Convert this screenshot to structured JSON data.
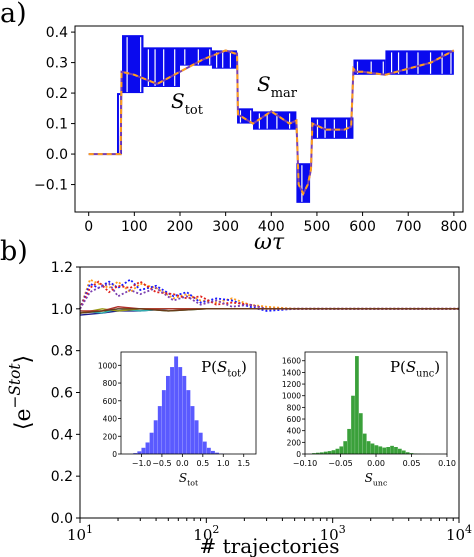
{
  "panels": {
    "a": {
      "label": "a)"
    },
    "b": {
      "label": "b)"
    }
  },
  "chart_data": [
    {
      "type": "line",
      "panel": "a",
      "xlabel": "ωτ",
      "xlim": [
        -30,
        820
      ],
      "ylim": [
        -0.19,
        0.42
      ],
      "xticks": [
        0,
        100,
        200,
        300,
        400,
        500,
        600,
        700,
        800
      ],
      "yticks": [
        -0.1,
        0.0,
        0.1,
        0.2,
        0.3,
        0.4
      ],
      "ytick_labels": [
        "−0.1",
        "0.0",
        "0.1",
        "0.2",
        "0.3",
        "0.4"
      ],
      "annotations": [
        {
          "text": "S_tot",
          "color": "#1a1aff"
        },
        {
          "text": "S_mar",
          "color": "#ff9f1c"
        }
      ],
      "colors": {
        "stot": "#0a0aee",
        "smar_dash_a": "#ff9f1c",
        "smar_dash_b": "#7b3fb0"
      },
      "stot_band": [
        {
          "x0": 0,
          "x1": 60,
          "lo": 0.0,
          "hi": 0.0
        },
        {
          "x0": 62,
          "x1": 73,
          "lo": 0.0,
          "hi": 0.2
        },
        {
          "x0": 73,
          "x1": 120,
          "lo": 0.2,
          "hi": 0.39
        },
        {
          "x0": 120,
          "x1": 200,
          "lo": 0.22,
          "hi": 0.35
        },
        {
          "x0": 200,
          "x1": 270,
          "lo": 0.29,
          "hi": 0.35
        },
        {
          "x0": 270,
          "x1": 325,
          "lo": 0.28,
          "hi": 0.34
        },
        {
          "x0": 325,
          "x1": 360,
          "lo": 0.1,
          "hi": 0.15
        },
        {
          "x0": 360,
          "x1": 455,
          "lo": 0.08,
          "hi": 0.14
        },
        {
          "x0": 455,
          "x1": 485,
          "lo": -0.16,
          "hi": -0.03
        },
        {
          "x0": 487,
          "x1": 580,
          "lo": 0.05,
          "hi": 0.12
        },
        {
          "x0": 580,
          "x1": 650,
          "lo": 0.26,
          "hi": 0.31
        },
        {
          "x0": 650,
          "x1": 800,
          "lo": 0.26,
          "hi": 0.34
        }
      ],
      "smar_line": {
        "x": [
          0,
          60,
          64,
          70,
          72,
          100,
          150,
          200,
          250,
          300,
          320,
          325,
          327,
          360,
          400,
          440,
          455,
          460,
          470,
          480,
          487,
          490,
          520,
          560,
          575,
          580,
          585,
          600,
          650,
          700,
          750,
          800
        ],
        "y": [
          0.0,
          0.0,
          0.0,
          0.0,
          0.27,
          0.26,
          0.23,
          0.27,
          0.31,
          0.34,
          0.33,
          0.33,
          0.13,
          0.1,
          0.14,
          0.1,
          0.11,
          -0.1,
          -0.13,
          -0.1,
          -0.05,
          0.1,
          0.08,
          0.08,
          0.09,
          0.28,
          0.27,
          0.27,
          0.26,
          0.28,
          0.3,
          0.34
        ]
      }
    },
    {
      "type": "line",
      "panel": "b",
      "xlabel": "# trajectories",
      "ylabel": "⟨e^{−S_tot}⟩",
      "xscale": "log",
      "xlim": [
        10,
        10000
      ],
      "ylim": [
        0.0,
        1.2
      ],
      "xtick_labels": [
        "10^1",
        "10^2",
        "10^3",
        "10^4"
      ],
      "yticks": [
        0.0,
        0.2,
        0.4,
        0.6,
        0.8,
        1.0,
        1.2
      ],
      "ytick_labels": [
        "0.0",
        "0.2",
        "0.4",
        "0.6",
        "0.8",
        "1.0",
        "1.2"
      ],
      "series": [
        {
          "color": "#ff9f1c",
          "style": "dotted",
          "x": [
            10,
            12,
            14,
            17,
            20,
            25,
            30,
            40,
            55,
            70,
            90,
            120,
            160,
            220,
            300,
            500,
            1000,
            3000,
            10000
          ],
          "y": [
            1.0,
            1.14,
            1.12,
            1.1,
            1.13,
            1.08,
            1.12,
            1.1,
            1.05,
            1.07,
            1.04,
            1.03,
            1.05,
            1.02,
            1.01,
            1.0,
            1.0,
            1.0,
            1.0
          ]
        },
        {
          "color": "#1a1aff",
          "style": "dotted",
          "x": [
            10,
            12,
            14,
            17,
            20,
            25,
            30,
            40,
            55,
            70,
            90,
            120,
            160,
            220,
            300,
            500,
            1000,
            3000,
            10000
          ],
          "y": [
            1.0,
            1.12,
            1.1,
            1.13,
            1.1,
            1.14,
            1.09,
            1.11,
            1.06,
            1.08,
            1.03,
            1.05,
            1.04,
            1.01,
            0.99,
            1.0,
            1.0,
            1.0,
            1.0
          ]
        },
        {
          "color": "#e0201a",
          "style": "dotted",
          "x": [
            10,
            12,
            14,
            17,
            20,
            25,
            30,
            40,
            55,
            70,
            90,
            120,
            160,
            220,
            300,
            500,
            1000,
            3000,
            10000
          ],
          "y": [
            1.0,
            1.1,
            1.13,
            1.08,
            1.11,
            1.1,
            1.13,
            1.08,
            1.07,
            1.05,
            1.06,
            1.02,
            1.03,
            1.02,
            1.0,
            1.0,
            1.0,
            1.0,
            1.0
          ]
        },
        {
          "color": "#7b3fb0",
          "style": "dotted",
          "x": [
            10,
            12,
            14,
            17,
            20,
            25,
            30,
            40,
            55,
            70,
            90,
            120,
            160,
            220,
            300,
            500,
            1000,
            3000,
            10000
          ],
          "y": [
            1.0,
            1.08,
            1.1,
            1.12,
            1.06,
            1.09,
            1.07,
            1.1,
            1.04,
            1.06,
            1.02,
            1.04,
            1.01,
            1.02,
            1.0,
            1.0,
            1.0,
            1.0,
            1.0
          ]
        },
        {
          "color": "#2a8a2a",
          "style": "solid",
          "x": [
            10,
            15,
            20,
            30,
            50,
            100,
            300,
            1000,
            10000
          ],
          "y": [
            0.98,
            0.99,
            0.99,
            1.0,
            0.99,
            1.0,
            1.0,
            1.0,
            1.0
          ]
        },
        {
          "color": "#1a1a8a",
          "style": "solid",
          "x": [
            10,
            15,
            20,
            30,
            50,
            100,
            300,
            1000,
            10000
          ],
          "y": [
            0.97,
            0.98,
            0.99,
            0.99,
            1.0,
            1.0,
            1.0,
            1.0,
            1.0
          ]
        },
        {
          "color": "#30b0b0",
          "style": "solid",
          "x": [
            10,
            15,
            20,
            30,
            50,
            100,
            300,
            1000,
            10000
          ],
          "y": [
            0.99,
            0.98,
            1.0,
            0.99,
            1.0,
            1.0,
            1.0,
            1.0,
            1.0
          ]
        },
        {
          "color": "#9a9a1a",
          "style": "solid",
          "x": [
            10,
            15,
            20,
            30,
            50,
            100,
            300,
            1000,
            10000
          ],
          "y": [
            0.98,
            1.0,
            0.99,
            1.0,
            1.0,
            1.0,
            1.0,
            1.0,
            1.0
          ]
        },
        {
          "color": "#b0302a",
          "style": "solid",
          "x": [
            10,
            15,
            20,
            30,
            50,
            100,
            300,
            1000,
            10000
          ],
          "y": [
            0.99,
            0.99,
            1.01,
            1.0,
            1.0,
            1.0,
            1.0,
            1.0,
            1.0
          ]
        },
        {
          "color": "#6a3a1a",
          "style": "solid",
          "x": [
            10,
            15,
            20,
            30,
            50,
            100,
            300,
            1000,
            10000
          ],
          "y": [
            0.98,
            0.99,
            1.0,
            1.0,
            0.99,
            1.0,
            1.0,
            1.0,
            1.0
          ]
        }
      ],
      "insets": [
        {
          "type": "bar",
          "title": "P(S_tot)",
          "xlabel": "S_tot",
          "color": "#5a5aff",
          "xlim": [
            -1.5,
            1.8
          ],
          "ylim": [
            0,
            1150
          ],
          "xtick_labels": [
            "−1.0",
            "−0.5",
            "0.0",
            "0.5",
            "1.0",
            "1.5"
          ],
          "xticks": [
            -1.0,
            -0.5,
            0.0,
            0.5,
            1.0,
            1.5
          ],
          "ytick_labels": [
            "0",
            "200",
            "400",
            "600",
            "800",
            "1000"
          ],
          "yticks": [
            0,
            200,
            400,
            600,
            800,
            1000
          ],
          "bin_start": -1.2,
          "bin_width": 0.1,
          "values": [
            10,
            30,
            70,
            130,
            240,
            380,
            540,
            720,
            880,
            980,
            1100,
            980,
            880,
            720,
            540,
            380,
            240,
            140,
            70,
            35,
            15,
            5,
            2,
            1
          ]
        },
        {
          "type": "bar",
          "title": "P(S_unc)",
          "xlabel": "S_unc",
          "color": "#3aa03a",
          "xlim": [
            -0.1,
            0.1
          ],
          "ylim": [
            0,
            1750
          ],
          "xtick_labels": [
            "−0.10",
            "−0.05",
            "0.00",
            "0.05",
            "0.10"
          ],
          "xticks": [
            -0.1,
            -0.05,
            0.0,
            0.05,
            0.1
          ],
          "ytick_labels": [
            "0",
            "200",
            "400",
            "600",
            "800",
            "1000",
            "1200",
            "1400",
            "1600"
          ],
          "yticks": [
            0,
            200,
            400,
            600,
            800,
            1000,
            1200,
            1400,
            1600
          ],
          "bin_start": -0.09,
          "bin_width": 0.0055,
          "values": [
            15,
            22,
            28,
            40,
            50,
            65,
            90,
            130,
            220,
            430,
            1000,
            1680,
            700,
            350,
            220,
            180,
            150,
            130,
            110,
            120,
            140,
            120,
            90,
            60,
            30,
            15,
            8,
            4,
            2,
            1,
            1,
            1,
            1
          ]
        }
      ]
    }
  ]
}
